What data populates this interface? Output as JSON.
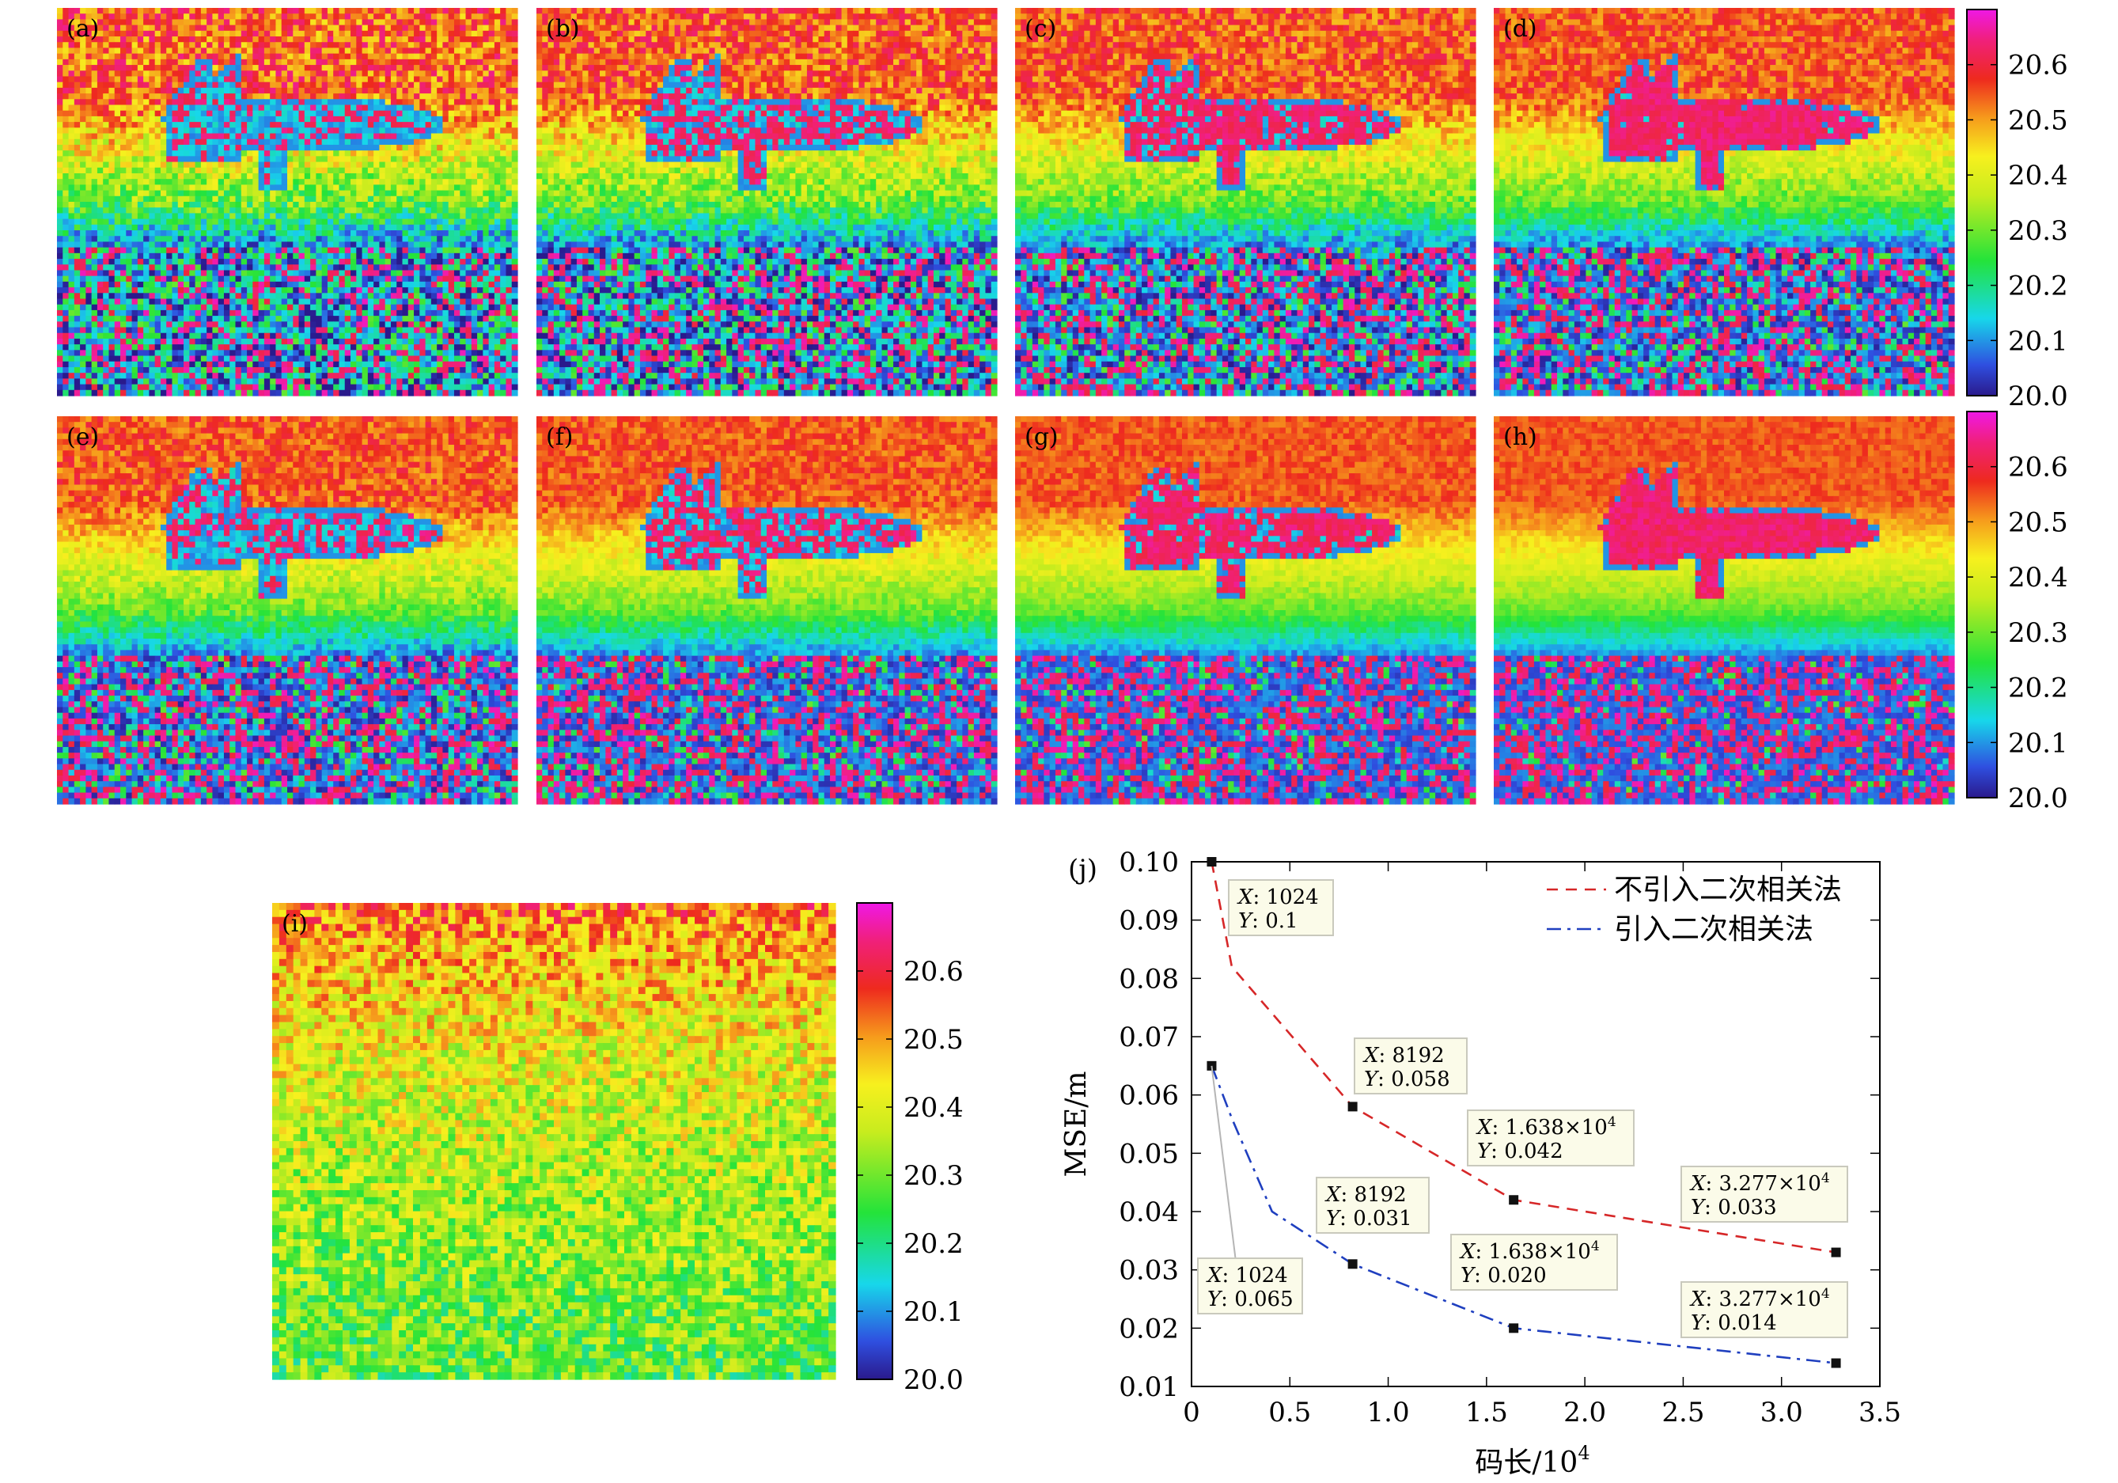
{
  "panels": [
    {
      "label": "(a)",
      "noise": 0.95,
      "plane": 0.35
    },
    {
      "label": "(b)",
      "noise": 0.8,
      "plane": 0.55
    },
    {
      "label": "(c)",
      "noise": 0.65,
      "plane": 0.8
    },
    {
      "label": "(d)",
      "noise": 0.55,
      "plane": 0.95
    },
    {
      "label": "(e)",
      "noise": 0.55,
      "plane": 0.4
    },
    {
      "label": "(f)",
      "noise": 0.42,
      "plane": 0.6
    },
    {
      "label": "(g)",
      "noise": 0.32,
      "plane": 0.85
    },
    {
      "label": "(h)",
      "noise": 0.25,
      "plane": 1.0
    },
    {
      "label": "(i)",
      "noise": 1.0,
      "plane": 0.0
    }
  ],
  "colorbar": {
    "ticks": [
      "20.6",
      "20.5",
      "20.4",
      "20.3",
      "20.2",
      "20.1",
      "20.0"
    ],
    "values": [
      20.6,
      20.5,
      20.4,
      20.3,
      20.2,
      20.1,
      20.0
    ],
    "range": [
      20.0,
      20.7
    ]
  },
  "chart_data": {
    "type": "line",
    "panel_label": "(j)",
    "xlabel": "码长/10",
    "xlabel_exp": "4",
    "ylabel": "MSE/m",
    "xlim": [
      0,
      3.5
    ],
    "ylim": [
      0.01,
      0.1
    ],
    "xticks": [
      "0",
      "0.5",
      "1.0",
      "1.5",
      "2.0",
      "2.5",
      "3.0",
      "3.5"
    ],
    "yticks": [
      "0.01",
      "0.02",
      "0.03",
      "0.04",
      "0.05",
      "0.06",
      "0.07",
      "0.08",
      "0.09",
      "0.10"
    ],
    "series": [
      {
        "name": "不引入二次相关法",
        "color": "#d62728",
        "dash": "dashed",
        "x": [
          0.1024,
          0.2048,
          0.4096,
          0.8192,
          1.638,
          3.277
        ],
        "y": [
          0.1,
          0.082,
          0.074,
          0.058,
          0.042,
          0.033
        ],
        "markers": [
          0,
          3,
          4,
          5
        ]
      },
      {
        "name": "引入二次相关法",
        "color": "#1f3fbf",
        "dash": "dashdot",
        "x": [
          0.1024,
          0.2048,
          0.4096,
          0.8192,
          1.638,
          3.277
        ],
        "y": [
          0.065,
          0.056,
          0.04,
          0.031,
          0.02,
          0.014
        ],
        "markers": [
          0,
          3,
          4,
          5
        ]
      }
    ],
    "datatips": [
      {
        "x_label": "X",
        "x_value": ": 1024",
        "y_label": "Y",
        "y_value": ": 0.1",
        "px": 0.1024,
        "py": 0.1
      },
      {
        "x_label": "X",
        "x_value": ": 8192",
        "y_label": "Y",
        "y_value": ": 0.058",
        "px": 0.8192,
        "py": 0.058
      },
      {
        "x_label": "X",
        "x_value": ": 1.638×10",
        "x_exp": "4",
        "y_label": "Y",
        "y_value": ": 0.042",
        "px": 1.638,
        "py": 0.042
      },
      {
        "x_label": "X",
        "x_value": ": 3.277×10",
        "x_exp": "4",
        "y_label": "Y",
        "y_value": ": 0.033",
        "px": 3.277,
        "py": 0.033
      },
      {
        "x_label": "X",
        "x_value": ": 8192",
        "y_label": "Y",
        "y_value": ": 0.031",
        "px": 0.8192,
        "py": 0.031
      },
      {
        "x_label": "X",
        "x_value": ": 1.638×10",
        "x_exp": "4",
        "y_label": "Y",
        "y_value": ": 0.020",
        "px": 1.638,
        "py": 0.02
      },
      {
        "x_label": "X",
        "x_value": ": 1024",
        "y_label": "Y",
        "y_value": ": 0.065",
        "px": 0.1024,
        "py": 0.065
      },
      {
        "x_label": "X",
        "x_value": ": 3.277×10",
        "x_exp": "4",
        "y_label": "Y",
        "y_value": ": 0.014",
        "px": 3.277,
        "py": 0.014
      }
    ]
  }
}
